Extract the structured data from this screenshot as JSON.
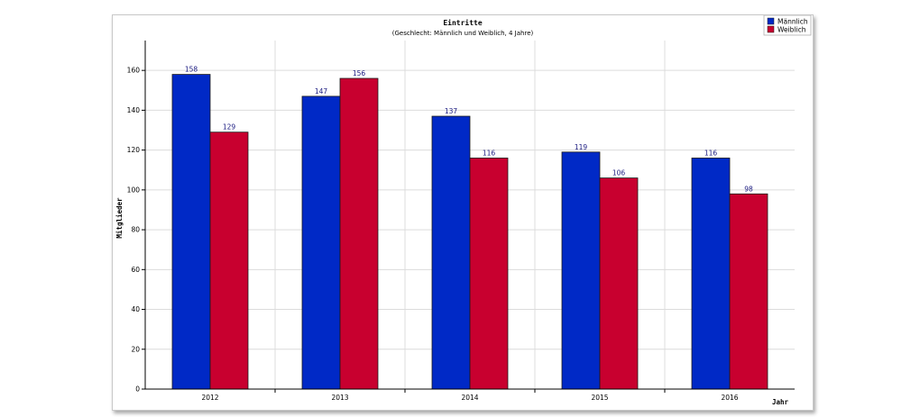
{
  "chart_data": {
    "type": "bar",
    "title": "Eintritte",
    "subtitle": "(Geschlecht: Männlich und Weiblich, 4 Jahre)",
    "xlabel": "Jahr",
    "ylabel": "Mitglieder",
    "categories": [
      "2012",
      "2013",
      "2014",
      "2015",
      "2016"
    ],
    "series": [
      {
        "name": "Männlich",
        "color": "#0029c6",
        "values": [
          158,
          147,
          137,
          119,
          116
        ]
      },
      {
        "name": "Weiblich",
        "color": "#c8002f",
        "values": [
          129,
          156,
          116,
          106,
          98
        ]
      }
    ],
    "ylim": [
      0,
      175
    ],
    "yticks": [
      0,
      20,
      40,
      60,
      80,
      100,
      120,
      140,
      160
    ],
    "grid": true,
    "legend_position": "top-right"
  }
}
